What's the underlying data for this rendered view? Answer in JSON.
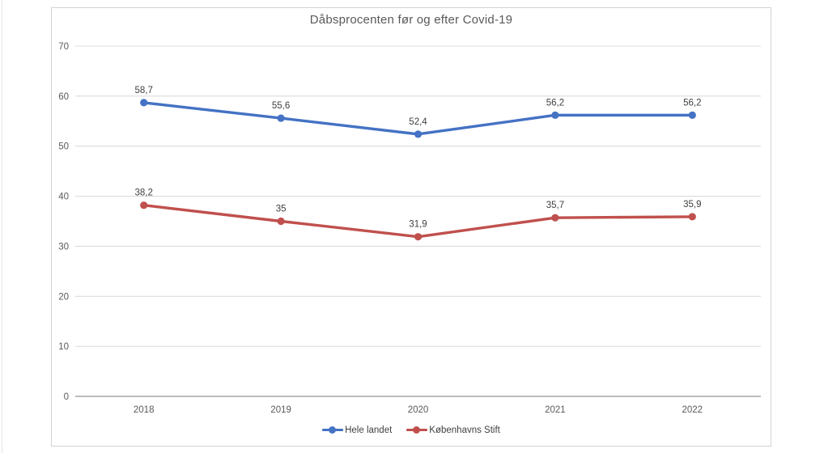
{
  "chart_data": {
    "type": "line",
    "title": "Dåbsprocenten før og efter Covid-19",
    "categories": [
      "2018",
      "2019",
      "2020",
      "2021",
      "2022"
    ],
    "series": [
      {
        "name": "Hele landet",
        "color": "#4472C4",
        "values": [
          58.7,
          55.6,
          52.4,
          56.2,
          56.2
        ],
        "data_labels": [
          "58,7",
          "55,6",
          "52,4",
          "56,2",
          "56,2"
        ]
      },
      {
        "name": "Københavns Stift",
        "color": "#C0504D",
        "values": [
          38.2,
          35,
          31.9,
          35.7,
          35.9
        ],
        "data_labels": [
          "38,2",
          "35",
          "31,9",
          "35,7",
          "35,9"
        ]
      }
    ],
    "xlabel": "",
    "ylabel": "",
    "ylim": [
      0,
      70
    ],
    "ytick_step": 10,
    "ytick_labels": [
      "0",
      "10",
      "20",
      "30",
      "40",
      "50",
      "60",
      "70"
    ],
    "grid": true,
    "vertical_grid": false,
    "marker": "circle",
    "legend_position": "bottom",
    "colors": {
      "title": "#595959",
      "tick_label": "#595959",
      "data_label": "#404040",
      "legend_label": "#404040",
      "gridline": "#dcdcdc",
      "axis_line": "#b3b3b3",
      "chart_border": "#d3d3d3",
      "background": "#ffffff"
    }
  }
}
